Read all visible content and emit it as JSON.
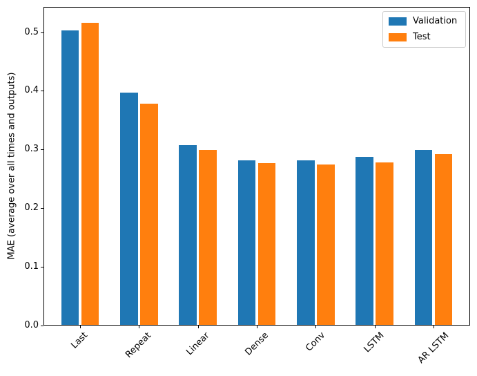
{
  "chart_data": {
    "type": "bar",
    "title": "",
    "xlabel": "",
    "ylabel": "MAE (average over all times and outputs)",
    "categories": [
      "Last",
      "Repeat",
      "Linear",
      "Dense",
      "Conv",
      "LSTM",
      "AR LSTM"
    ],
    "series": [
      {
        "name": "Validation",
        "color": "#1f77b4",
        "values": [
          0.503,
          0.397,
          0.307,
          0.281,
          0.281,
          0.287,
          0.299
        ]
      },
      {
        "name": "Test",
        "color": "#ff7f0e",
        "values": [
          0.516,
          0.378,
          0.299,
          0.277,
          0.274,
          0.278,
          0.292
        ]
      }
    ],
    "yticks": [
      "0.0",
      "0.1",
      "0.2",
      "0.3",
      "0.4",
      "0.5"
    ],
    "ytick_values": [
      0.0,
      0.1,
      0.2,
      0.3,
      0.4,
      0.5
    ],
    "ylim": [
      0,
      0.543
    ],
    "xlim": [
      -0.62,
      6.62
    ],
    "bar_width": 0.3,
    "bar_offset": 0.17,
    "xtick_rotation_deg": 45,
    "grid": false,
    "legend": {
      "position": "upper right"
    },
    "axis_color": "#000000",
    "background": "#ffffff"
  }
}
